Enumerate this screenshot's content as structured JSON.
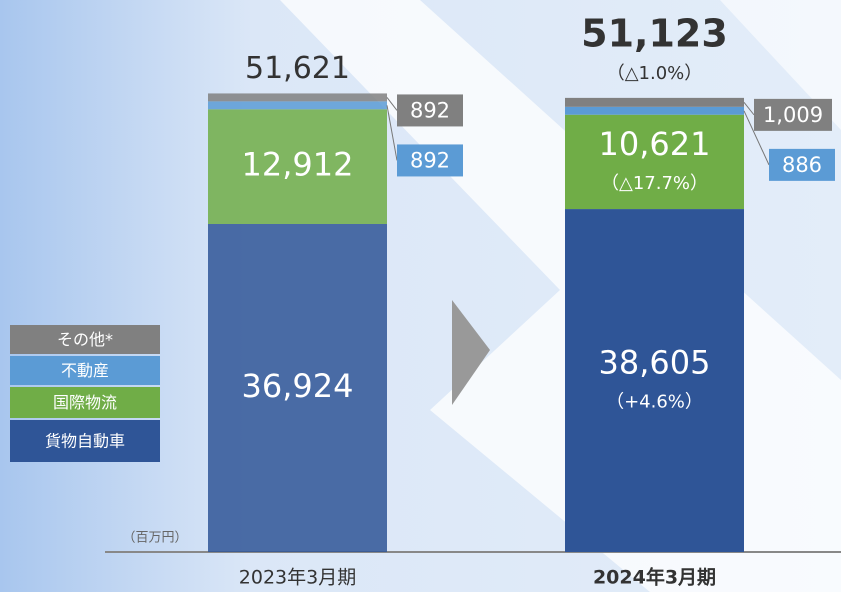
{
  "chart_data": {
    "type": "stacked-bar",
    "unit_label": "（百万円）",
    "categories": [
      "2023年3月期",
      "2024年3月期"
    ],
    "series": [
      {
        "name": "貨物自動車",
        "color": "#2f5597",
        "values": [
          36924,
          38605
        ],
        "value_labels": [
          "36,924",
          "38,605"
        ],
        "change_labels": [
          null,
          "（+4.6%）"
        ]
      },
      {
        "name": "国際物流",
        "color": "#70ad47",
        "values": [
          12912,
          10621
        ],
        "value_labels": [
          "12,912",
          "10,621"
        ],
        "change_labels": [
          null,
          "（△17.7%）"
        ]
      },
      {
        "name": "不動産",
        "color": "#5b9bd5",
        "values": [
          892,
          886
        ],
        "value_labels": [
          "892",
          "886"
        ]
      },
      {
        "name": "その他*",
        "color": "#808080",
        "values": [
          892,
          1009
        ],
        "value_labels": [
          "892",
          "1,009"
        ]
      }
    ],
    "totals": [
      51621,
      51123
    ],
    "total_labels": [
      "51,621",
      "51,123"
    ],
    "total_change_labels": [
      null,
      "（△1.0%）"
    ],
    "ylim": [
      0,
      60000
    ]
  }
}
